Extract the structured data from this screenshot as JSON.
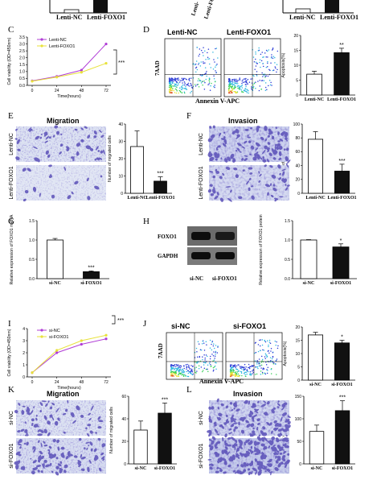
{
  "colors": {
    "nc_bar": "#ffffff",
    "foxo_bar": "#111111",
    "nc_line": "#b03dd6",
    "foxo_line": "#e8e23a",
    "micro_bg": "#d9dff0",
    "stain": "#5a4fb8"
  },
  "panel_letters": {
    "C": "C",
    "D": "D",
    "E": "E",
    "F": "F",
    "G": "G",
    "H": "H",
    "I": "I",
    "J": "J",
    "K": "K",
    "L": "L"
  },
  "top_strip": {
    "left_labels": [
      "Lenti-NC",
      "Lenti-FOXO1"
    ],
    "mid_labels": [
      "Lenti-",
      "Lenti-FOXO"
    ],
    "right_labels": [
      "Lenti-NC",
      "Lenti-FOXO1"
    ]
  },
  "flow": {
    "x_title": "Annexin V-APC",
    "y_title": "7AAD"
  },
  "panel_C": {
    "legend": [
      "Lenti-NC",
      "Lenti-FOXO1"
    ],
    "sig": "***"
  },
  "panel_D": {
    "headers": [
      "Lenti-NC",
      "Lenti-FOXO1"
    ]
  },
  "panel_E": {
    "title": "Migration",
    "rows": [
      "Lenti-NC",
      "Lenti-FOXO1"
    ]
  },
  "panel_F": {
    "title": "Invasion",
    "rows": [
      "Lenti-NC",
      "Lenti-FOXO1"
    ]
  },
  "panel_H": {
    "blot_labels": [
      "FOXO1",
      "GAPDH"
    ],
    "lanes": [
      "si-NC",
      "si-FOXO1"
    ]
  },
  "panel_I": {
    "legend": [
      "si-NC",
      "si-FOXO1"
    ],
    "sig": "***"
  },
  "panel_J": {
    "headers": [
      "si-NC",
      "si-FOXO1"
    ]
  },
  "panel_K": {
    "title": "Migration",
    "rows": [
      "si-NC",
      "si-FOXO1"
    ]
  },
  "panel_L": {
    "title": "Invasion",
    "rows": [
      "si-NC",
      "si-FOXO1"
    ]
  },
  "chart_data": [
    {
      "id": "C",
      "type": "line",
      "x": [
        0,
        24,
        48,
        72
      ],
      "xlabel": "Time(hours)",
      "ylabel": "Cell viability (OD=450nm)",
      "ylim": [
        0,
        3.5
      ],
      "yticks": [
        0.0,
        0.5,
        1.0,
        1.5,
        2.0,
        2.5,
        3.0,
        3.5
      ],
      "series": [
        {
          "name": "Lenti-NC",
          "values": [
            0.33,
            0.65,
            1.1,
            3.0
          ]
        },
        {
          "name": "Lenti-FOXO1",
          "values": [
            0.3,
            0.6,
            0.95,
            1.6
          ]
        }
      ],
      "annotation": "***"
    },
    {
      "id": "D",
      "type": "bar",
      "categories": [
        "Lenti-NC",
        "Lenti-FOXO1"
      ],
      "values": [
        7,
        14.2
      ],
      "errors": [
        1.0,
        1.5
      ],
      "ylabel": "Apoptosis(%)",
      "ylim": [
        0,
        20
      ],
      "yticks": [
        0,
        5,
        10,
        15,
        20
      ],
      "annotations": [
        "",
        "**"
      ]
    },
    {
      "id": "E",
      "type": "bar",
      "categories": [
        "Lenti-NC",
        "Lenti-FOXO1"
      ],
      "values": [
        27,
        7
      ],
      "errors": [
        9,
        2.5
      ],
      "ylabel": "Number of migrated cells",
      "ylim": [
        0,
        40
      ],
      "yticks": [
        0,
        10,
        20,
        30,
        40
      ],
      "annotations": [
        "",
        "***"
      ]
    },
    {
      "id": "F",
      "type": "bar",
      "categories": [
        "Lenti-NC",
        "Lenti-FOXO1"
      ],
      "values": [
        78,
        32
      ],
      "errors": [
        11,
        10
      ],
      "ylabel": "Number of invaded cells",
      "ylim": [
        0,
        100
      ],
      "yticks": [
        0,
        20,
        40,
        60,
        80,
        100
      ],
      "annotations": [
        "",
        "***"
      ]
    },
    {
      "id": "G",
      "type": "bar",
      "categories": [
        "si-NC",
        "si-FOXO1"
      ],
      "values": [
        1.0,
        0.18
      ],
      "errors": [
        0.04,
        0.02
      ],
      "ylabel": "Relative expression of FOXO1 mRNA",
      "ylim": [
        0,
        1.5
      ],
      "yticks": [
        0.0,
        0.5,
        1.0,
        1.5
      ],
      "annotations": [
        "",
        "***"
      ]
    },
    {
      "id": "H",
      "type": "bar",
      "categories": [
        "si-NC",
        "si-FOXO1"
      ],
      "values": [
        1.0,
        0.82
      ],
      "errors": [
        0.01,
        0.08
      ],
      "ylabel": "Relative expression of FOXO1 protein",
      "ylim": [
        0,
        1.5
      ],
      "yticks": [
        0.0,
        0.5,
        1.0,
        1.5
      ],
      "annotations": [
        "",
        "*"
      ]
    },
    {
      "id": "I",
      "type": "line",
      "x": [
        0,
        24,
        48,
        72
      ],
      "xlabel": "Time(hours)",
      "ylabel": "Cell viability (OD=450nm)",
      "ylim": [
        0,
        4
      ],
      "yticks": [
        0,
        1,
        2,
        3,
        4
      ],
      "series": [
        {
          "name": "si-NC",
          "values": [
            0.35,
            2.0,
            2.7,
            3.15
          ]
        },
        {
          "name": "si-FOXO1",
          "values": [
            0.35,
            2.2,
            3.0,
            3.45
          ]
        }
      ],
      "annotation": "***"
    },
    {
      "id": "J",
      "type": "bar",
      "categories": [
        "si-NC",
        "si-FOXO1"
      ],
      "values": [
        17,
        14
      ],
      "errors": [
        1.0,
        1.0
      ],
      "ylabel": "Apoptosis(%)",
      "ylim": [
        0,
        20
      ],
      "yticks": [
        0,
        5,
        10,
        15,
        20
      ],
      "annotations": [
        "",
        "*"
      ]
    },
    {
      "id": "K",
      "type": "bar",
      "categories": [
        "si-NC",
        "si-FOXO1"
      ],
      "values": [
        30,
        45
      ],
      "errors": [
        8,
        9
      ],
      "ylabel": "Number of migrated cells",
      "ylim": [
        0,
        60
      ],
      "yticks": [
        0,
        20,
        40,
        60
      ],
      "annotations": [
        "",
        "***"
      ]
    },
    {
      "id": "L",
      "type": "bar",
      "categories": [
        "si-NC",
        "si-FOXO1"
      ],
      "values": [
        72,
        118
      ],
      "errors": [
        14,
        22
      ],
      "ylabel": "Number of invaded cells",
      "ylim": [
        0,
        150
      ],
      "yticks": [
        0,
        50,
        100,
        150
      ],
      "annotations": [
        "",
        "***"
      ]
    }
  ]
}
